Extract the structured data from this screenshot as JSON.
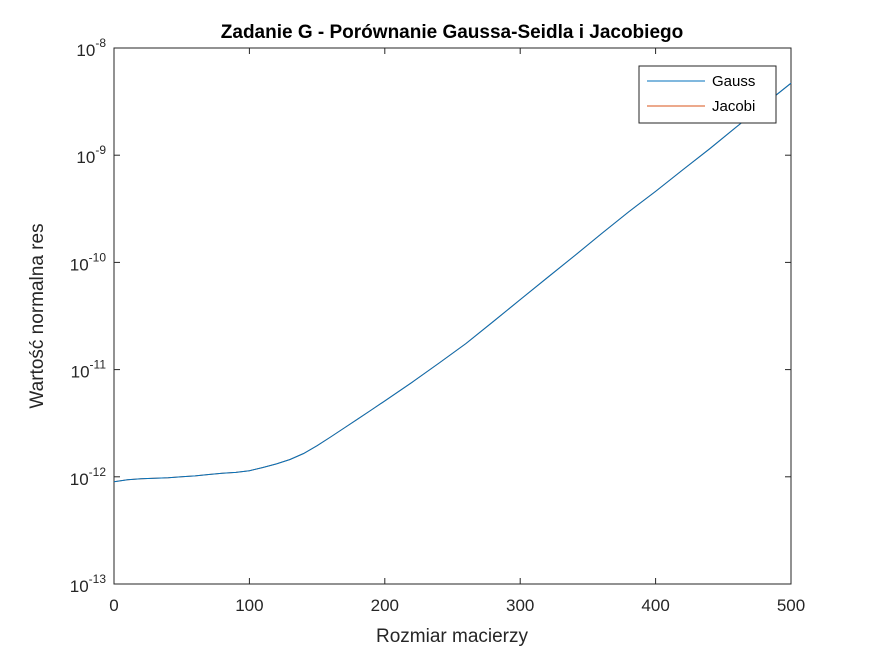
{
  "chart_data": {
    "type": "line",
    "title": "Zadanie G - Porównanie Gaussa-Seidla i Jacobiego",
    "xlabel": "Rozmiar macierzy",
    "ylabel": "Wartość normalna res",
    "xlim": [
      0,
      500
    ],
    "ylim": [
      1e-13,
      1e-08
    ],
    "yscale": "log",
    "grid": false,
    "legend_position": "top-right",
    "x_ticks": [
      {
        "value": 0,
        "label": "0"
      },
      {
        "value": 100,
        "label": "100"
      },
      {
        "value": 200,
        "label": "200"
      },
      {
        "value": 300,
        "label": "300"
      },
      {
        "value": 400,
        "label": "400"
      },
      {
        "value": 500,
        "label": "500"
      }
    ],
    "y_ticks": [
      {
        "value": 1e-13,
        "base": "10",
        "exp": "-13"
      },
      {
        "value": 1e-12,
        "base": "10",
        "exp": "-12"
      },
      {
        "value": 1e-11,
        "base": "10",
        "exp": "-11"
      },
      {
        "value": 1e-10,
        "base": "10",
        "exp": "-10"
      },
      {
        "value": 1e-09,
        "base": "10",
        "exp": "-9"
      },
      {
        "value": 1e-08,
        "base": "10",
        "exp": "-8"
      }
    ],
    "series": [
      {
        "name": "Gauss",
        "color": "#0072BD",
        "x": [
          0,
          10,
          20,
          30,
          40,
          50,
          60,
          70,
          80,
          90,
          100,
          110,
          120,
          130,
          140,
          150,
          160,
          170,
          180,
          190,
          200,
          220,
          240,
          260,
          280,
          300,
          320,
          340,
          360,
          380,
          400,
          420,
          440,
          460,
          480,
          500
        ],
        "y": [
          9e-13,
          9.4e-13,
          9.6e-13,
          9.7e-13,
          9.8e-13,
          1e-12,
          1.02e-12,
          1.05e-12,
          1.08e-12,
          1.1e-12,
          1.14e-12,
          1.22e-12,
          1.32e-12,
          1.45e-12,
          1.65e-12,
          1.95e-12,
          2.35e-12,
          2.85e-12,
          3.45e-12,
          4.2e-12,
          5.1e-12,
          7.6e-12,
          1.15e-11,
          1.75e-11,
          2.8e-11,
          4.5e-11,
          7.2e-11,
          1.15e-10,
          1.85e-10,
          2.95e-10,
          4.6e-10,
          7.3e-10,
          1.15e-09,
          1.85e-09,
          2.95e-09,
          4.7e-09
        ]
      },
      {
        "name": "Jacobi",
        "color": "#D95319",
        "x": [
          0,
          10,
          20,
          30,
          40,
          50,
          60,
          70,
          80,
          90,
          100,
          110,
          120,
          130,
          140,
          150,
          160,
          170,
          180,
          190,
          200,
          220,
          240,
          260,
          280,
          300,
          320,
          340,
          360,
          380,
          400,
          420,
          440,
          460,
          480,
          500
        ],
        "y": [
          9e-13,
          9.4e-13,
          9.6e-13,
          9.7e-13,
          9.8e-13,
          1e-12,
          1.02e-12,
          1.05e-12,
          1.08e-12,
          1.1e-12,
          1.14e-12,
          1.22e-12,
          1.32e-12,
          1.45e-12,
          1.65e-12,
          1.95e-12,
          2.35e-12,
          2.85e-12,
          3.45e-12,
          4.2e-12,
          5.1e-12,
          7.6e-12,
          1.15e-11,
          1.75e-11,
          2.8e-11,
          4.5e-11,
          7.2e-11,
          1.15e-10,
          1.85e-10,
          2.95e-10,
          4.6e-10,
          7.3e-10,
          1.15e-09,
          1.85e-09,
          2.95e-09,
          4.7e-09
        ]
      }
    ]
  }
}
